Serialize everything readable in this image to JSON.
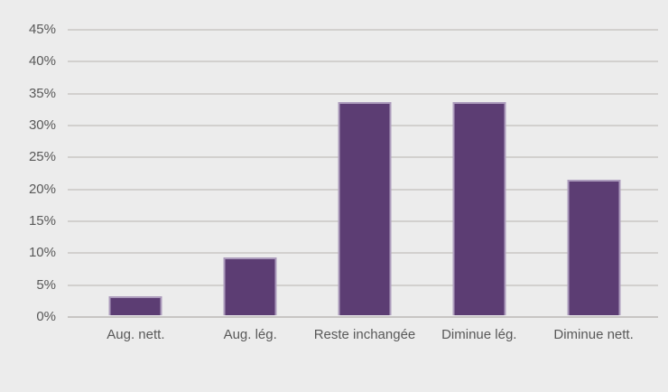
{
  "chart_data": {
    "type": "bar",
    "categories": [
      "Aug. nett.",
      "Aug. lég.",
      "Reste inchangée",
      "Diminue lég.",
      "Diminue nett."
    ],
    "values": [
      3.03,
      9.09,
      33.33,
      33.33,
      21.21
    ],
    "title": "",
    "xlabel": "",
    "ylabel": "",
    "ylim": [
      0,
      45
    ],
    "yticks": [
      0,
      5,
      10,
      15,
      20,
      25,
      30,
      35,
      40,
      45
    ],
    "ytick_labels": [
      "0%",
      "5%",
      "10%",
      "15%",
      "20%",
      "25%",
      "30%",
      "35%",
      "40%",
      "45%"
    ],
    "grid": true,
    "legend": false,
    "colors": {
      "background": "#ECECEC",
      "bar_fill": "#5C3D73",
      "bar_border": "#AC9BBC",
      "gridline": "#D2D0CE",
      "axis_line": "#C7C5C3",
      "label_text": "#595959"
    }
  }
}
